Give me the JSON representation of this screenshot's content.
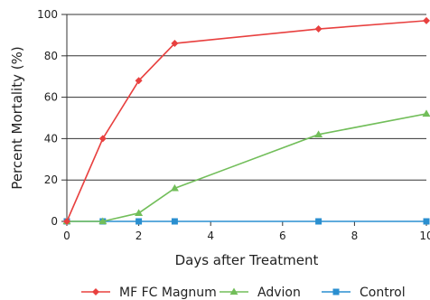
{
  "chart_data": {
    "type": "line",
    "xlabel": "Days after Treatment",
    "ylabel": "Percent Mortality (%)",
    "xlim": [
      0,
      10
    ],
    "ylim": [
      0,
      100
    ],
    "x_ticks": [
      0,
      2,
      4,
      6,
      8,
      10
    ],
    "y_ticks": [
      0,
      20,
      40,
      60,
      80,
      100
    ],
    "grid": "horizontal",
    "legend_position": "bottom",
    "series": [
      {
        "name": "MF FC Magnum",
        "color": "#e8403f",
        "marker": "diamond",
        "x": [
          0,
          1,
          2,
          3,
          7,
          10
        ],
        "y": [
          0,
          40,
          68,
          86,
          93,
          97
        ]
      },
      {
        "name": "Advion",
        "color": "#72be5a",
        "marker": "triangle",
        "x": [
          0,
          1,
          2,
          3,
          7,
          10
        ],
        "y": [
          0,
          0,
          4,
          16,
          42,
          52
        ]
      },
      {
        "name": "Control",
        "color": "#2a8fd0",
        "marker": "square",
        "x": [
          0,
          1,
          2,
          3,
          7,
          10
        ],
        "y": [
          0,
          0,
          0,
          0,
          0,
          0
        ]
      }
    ]
  }
}
